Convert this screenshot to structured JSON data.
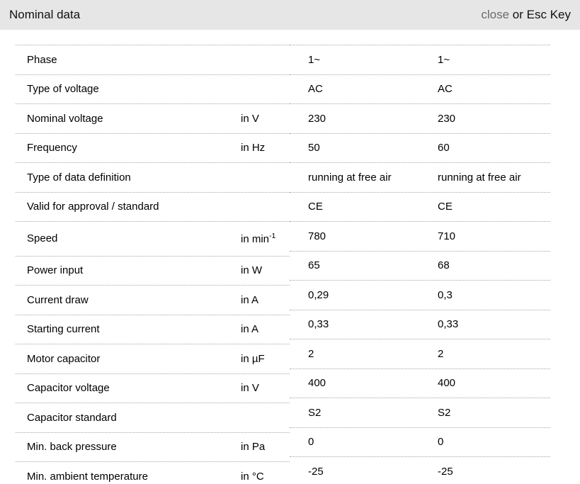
{
  "header": {
    "title": "Nominal data",
    "close_link": "close",
    "esc_hint": "or Esc Key"
  },
  "colors": {
    "header_bg": "#e6e6e6",
    "divider": "#a6a6a6",
    "close_link": "#6b6b6b",
    "text": "#000000"
  },
  "table": {
    "columns": [
      "parameter",
      "unit",
      "value_1",
      "value_2"
    ],
    "rows": [
      {
        "label": "Phase",
        "unit": "",
        "values": [
          "1~",
          "1~"
        ]
      },
      {
        "label": "Type of voltage",
        "unit": "",
        "values": [
          "AC",
          "AC"
        ]
      },
      {
        "label": "Nominal voltage",
        "unit": "in V",
        "values": [
          "230",
          "230"
        ]
      },
      {
        "label": "Frequency",
        "unit": "in Hz",
        "values": [
          "50",
          "60"
        ]
      },
      {
        "label": "Type of data definition",
        "unit": "",
        "values": [
          "running at free air",
          "running at free air"
        ]
      },
      {
        "label": "Valid for approval / standard",
        "unit": "",
        "values": [
          "CE",
          "CE"
        ]
      },
      {
        "label": "Speed",
        "unit": "in min",
        "unit_sup": "-1",
        "values": [
          "780",
          "710"
        ]
      },
      {
        "label": "Power input",
        "unit": "in W",
        "values": [
          "65",
          "68"
        ]
      },
      {
        "label": "Current draw",
        "unit": "in A",
        "values": [
          "0,29",
          "0,3"
        ]
      },
      {
        "label": "Starting current",
        "unit": "in A",
        "values": [
          "0,33",
          "0,33"
        ]
      },
      {
        "label": "Motor capacitor",
        "unit": "in µF",
        "values": [
          "2",
          "2"
        ]
      },
      {
        "label": "Capacitor voltage",
        "unit": "in V",
        "values": [
          "400",
          "400"
        ]
      },
      {
        "label": "Capacitor standard",
        "unit": "",
        "values": [
          "S2",
          "S2"
        ]
      },
      {
        "label": "Min. back pressure",
        "unit": "in Pa",
        "values": [
          "0",
          "0"
        ]
      },
      {
        "label": "Min. ambient temperature",
        "unit": "in °C",
        "values": [
          "-25",
          "-25"
        ]
      }
    ]
  }
}
